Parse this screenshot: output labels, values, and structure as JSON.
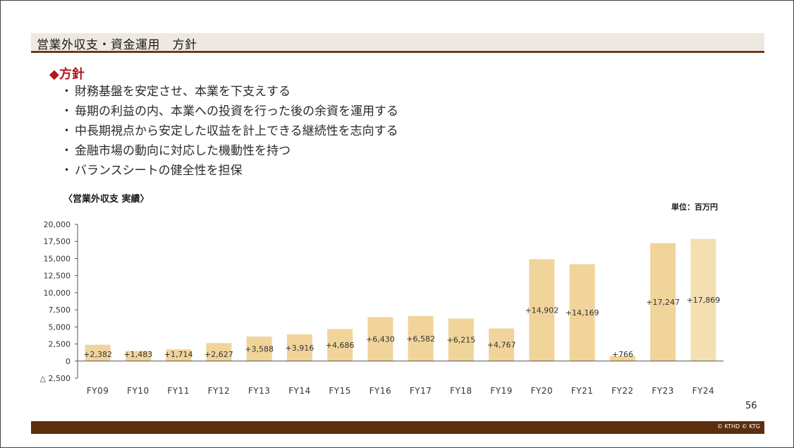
{
  "page": {
    "title": "営業外収支・資金運用　方針",
    "policy_heading": "◆方針",
    "policy_items": [
      "財務基盤を安定させ、本業を下支えする",
      "毎期の利益の内、本業への投資を行った後の余資を運用する",
      "中長期視点から安定した収益を計上できる継続性を志向する",
      "金融市場の動向に対応した機動性を持つ",
      "バランスシートの健全性を担保"
    ],
    "bullet": "・",
    "section_label": "〈営業外収支 実績〉",
    "unit_label": "単位：百万円",
    "page_number": "56",
    "copyright": "© KTHD © KTG"
  },
  "colors": {
    "bar": "#f0d49a",
    "bar_last": "#f3dfb0",
    "heading": "#b0191e",
    "title_rule": "#6b3a17",
    "footer": "#5b2f0d"
  },
  "chart_data": {
    "type": "bar",
    "title": "",
    "xlabel": "",
    "ylabel": "",
    "ylim": [
      -2500,
      20000
    ],
    "yticks": [
      -2500,
      0,
      2500,
      5000,
      7500,
      10000,
      12500,
      15000,
      17500,
      20000
    ],
    "ytick_labels": [
      "△ 2,500",
      "0",
      "2,500",
      "5,000",
      "7,500",
      "10,000",
      "12,500",
      "15,000",
      "17,500",
      "20,000"
    ],
    "categories": [
      "FY09",
      "FY10",
      "FY11",
      "FY12",
      "FY13",
      "FY14",
      "FY15",
      "FY16",
      "FY17",
      "FY18",
      "FY19",
      "FY20",
      "FY21",
      "FY22",
      "FY23",
      "FY24"
    ],
    "values": [
      2382,
      1483,
      1714,
      2627,
      3588,
      3916,
      4686,
      6430,
      6582,
      6215,
      4767,
      14902,
      14169,
      766,
      17247,
      17869
    ],
    "data_labels": [
      "+2,382",
      "+1,483",
      "+1,714",
      "+2,627",
      "+3,588",
      "+3,916",
      "+4,686",
      "+6,430",
      "+6,582",
      "+6,215",
      "+4,767",
      "+14,902",
      "+14,169",
      "+766",
      "+17,247",
      "+17,869"
    ],
    "grid": false,
    "legend": "none"
  }
}
